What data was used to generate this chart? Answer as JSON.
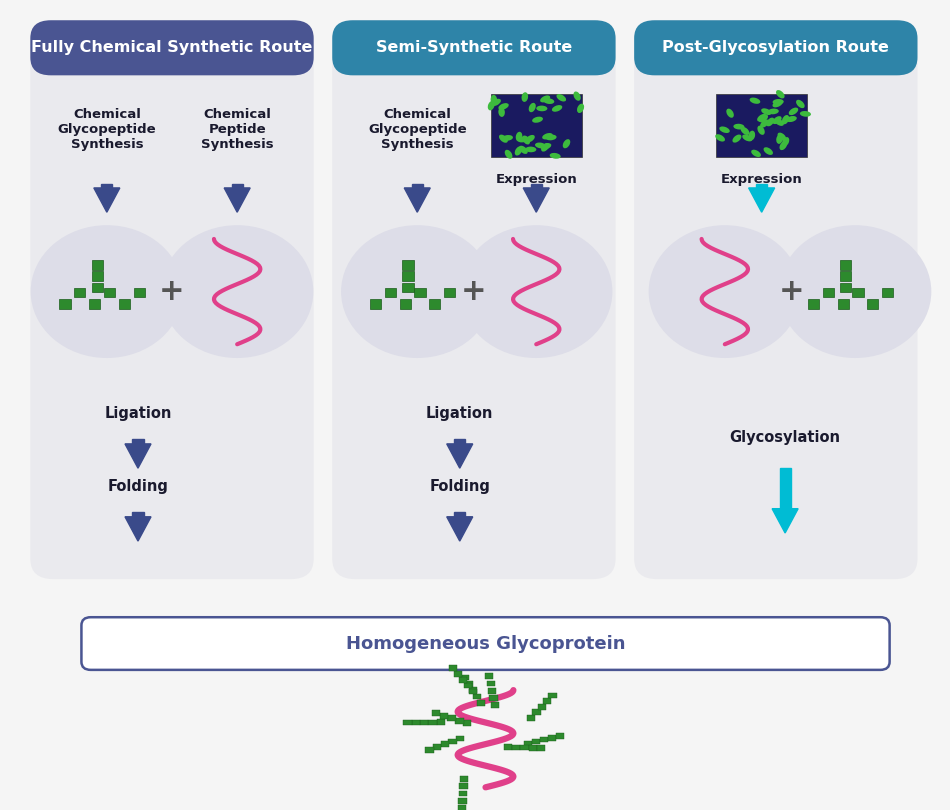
{
  "bg_color": "#f5f5f5",
  "col1_header_color": "#4a5592",
  "col2_header_color": "#2e84a8",
  "col3_header_color": "#2e84a8",
  "col1_title": "Fully Chemical Synthetic Route",
  "col2_title": "Semi-Synthetic Route",
  "col3_title": "Post-Glycosylation Route",
  "col1_ligation": "Ligation",
  "col1_folding": "Folding",
  "col2_ligation": "Ligation",
  "col2_folding": "Folding",
  "col3_glycosylation": "Glycosylation",
  "final_label": "Homogeneous Glycoprotein",
  "final_box_color": "#4a5592",
  "final_text_color": "#4a5592",
  "dark_arrow_color": "#3a4a8a",
  "cyan_arrow_color": "#00bcd4",
  "panel_bg": "#eaeaee",
  "circle_bg": "#dddde8",
  "bacteria_bg": "#1a1a60",
  "bacteria_color": "#3dbb3d",
  "helix_color": "#e0408a",
  "sugar_color": "#2d8a2d",
  "sugar_edge_color": "#1a5c1a",
  "text_color": "#1a1a2e",
  "plus_color": "#555555"
}
